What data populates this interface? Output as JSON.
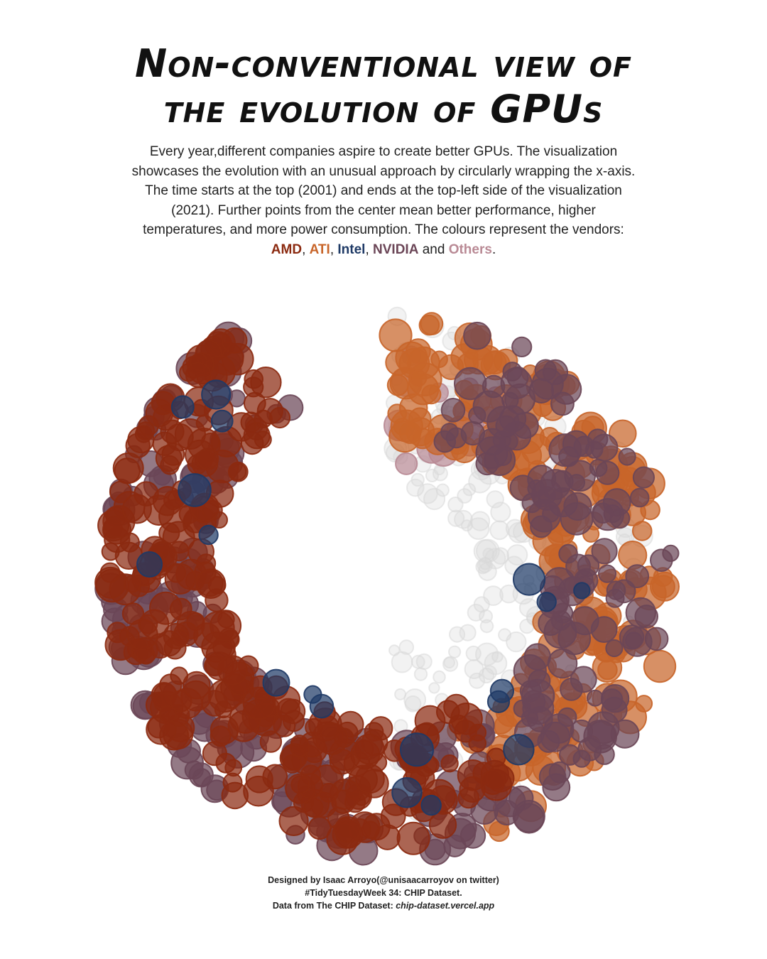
{
  "title": {
    "line1": "Non-conventional view of",
    "line2": "the evolution of GPUs"
  },
  "subtitle": {
    "lines": [
      "Every year,different companies aspire to create better GPUs. The visualization",
      "showcases the evolution with an unusual approach by circularly wrapping the x-axis.",
      "The time starts at the top (2001) and ends at the top-left side of the visualization",
      "(2021). Further points from the center mean better performance, higher",
      "temperatures, and more power consumption. The colours represent the vendors:"
    ],
    "legend": {
      "amd": "AMD",
      "ati": "ATI",
      "intel": "Intel",
      "nvidia": "NVIDIA",
      "others": "Others",
      "sep": ", ",
      "and": " and ",
      "end": "."
    }
  },
  "colors": {
    "AMD": "#8b2a10",
    "ATI": "#c8652a",
    "Intel": "#1f3a66",
    "NVIDIA": "#6b4657",
    "Others": "#b98a95",
    "background_points": "#d9d9d9"
  },
  "caption": {
    "line1": "Designed by Isaac  Arroyo(@unisaacarroyov on twitter)",
    "line2": "#TidyTuesdayWeek 34: CHIP Dataset.",
    "line3_prefix": "Data from The CHIP Dataset: ",
    "line3_link": "chip-dataset.vercel.app"
  },
  "chart_data": {
    "type": "scatter",
    "coordinate_system": "polar (circularly wrapped time axis)",
    "angle_variable": "Year",
    "angle_range": [
      2001,
      2021
    ],
    "angle_start": "top",
    "radius_meaning": "performance / temperature / power (further from center = higher)",
    "legend_placement": "inline in subtitle",
    "grid": false,
    "series": [
      {
        "name": "AMD",
        "x": [
          2011,
          2012,
          2013,
          2014,
          2015,
          2016,
          2017,
          2018,
          2019,
          2020,
          2021
        ],
        "y": [
          0.78,
          0.8,
          0.82,
          0.84,
          0.85,
          0.86,
          0.87,
          0.88,
          0.89,
          0.9,
          0.92
        ]
      },
      {
        "name": "ATI",
        "x": [
          2001,
          2002,
          2003,
          2004,
          2005,
          2006,
          2007,
          2008,
          2009,
          2010
        ],
        "y": [
          0.7,
          0.72,
          0.74,
          0.76,
          0.78,
          0.8,
          0.82,
          0.84,
          0.85,
          0.86
        ]
      },
      {
        "name": "Intel",
        "x": [
          2007,
          2010,
          2012,
          2014,
          2018,
          2020
        ],
        "y": [
          0.6,
          0.65,
          0.7,
          0.72,
          0.78,
          0.82
        ]
      },
      {
        "name": "NVIDIA",
        "x": [
          2003,
          2005,
          2007,
          2009,
          2011,
          2013,
          2015,
          2017,
          2019,
          2021
        ],
        "y": [
          0.74,
          0.78,
          0.82,
          0.85,
          0.87,
          0.88,
          0.9,
          0.91,
          0.92,
          0.93
        ]
      },
      {
        "name": "Others",
        "x": [
          2001,
          2002,
          2003
        ],
        "y": [
          0.62,
          0.66,
          0.7
        ]
      }
    ]
  }
}
